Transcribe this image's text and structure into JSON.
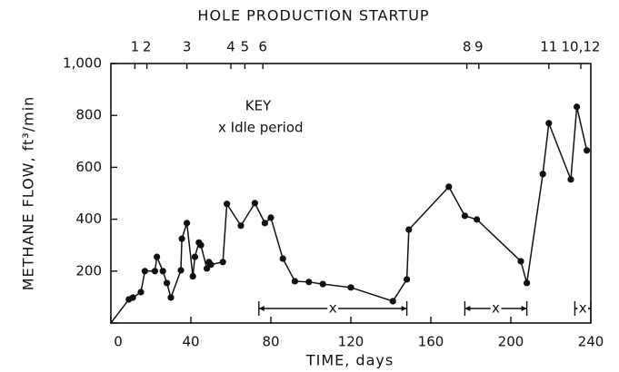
{
  "chart_data": {
    "type": "line",
    "title": "HOLE PRODUCTION STARTUP",
    "x_label": "TIME, days",
    "y_label": "METHANE FLOW, ft³/min",
    "key_title": "KEY",
    "key_text": "x Idle period",
    "xlim": [
      0,
      240
    ],
    "xticks": [
      0,
      40,
      80,
      120,
      160,
      200,
      240
    ],
    "ylim": [
      0,
      1000
    ],
    "yticks": [
      {
        "value": 0,
        "label": ""
      },
      200,
      400,
      600,
      800,
      {
        "value": 1000,
        "label": "1,000"
      }
    ],
    "color": "#111111",
    "series": [
      {
        "name": "Methane flow",
        "x": [
          0,
          9,
          11,
          15,
          17,
          22,
          23,
          26,
          28,
          30,
          35,
          35.5,
          38,
          41,
          42,
          44,
          45,
          48,
          49,
          50,
          56,
          58,
          65,
          72,
          77,
          80,
          86,
          92,
          99,
          106,
          120,
          141,
          148,
          149,
          169,
          177,
          183,
          205,
          208,
          216,
          219,
          230,
          233,
          238
        ],
        "values": [
          0,
          91,
          98,
          119,
          200,
          200,
          255,
          200,
          154,
          98,
          203,
          325,
          385,
          180,
          255,
          310,
          300,
          210,
          235,
          225,
          235,
          459,
          375,
          462,
          385,
          406,
          248,
          161,
          158,
          150,
          137,
          84,
          168,
          360,
          525,
          413,
          399,
          238,
          154,
          574,
          770,
          553,
          833,
          665
        ]
      }
    ],
    "top_annotations": [
      {
        "label": "1",
        "x": 12
      },
      {
        "label": "2",
        "x": 18
      },
      {
        "label": "3",
        "x": 38
      },
      {
        "label": "4",
        "x": 60
      },
      {
        "label": "5",
        "x": 67
      },
      {
        "label": "6",
        "x": 76
      },
      {
        "label": "8",
        "x": 178
      },
      {
        "label": "9",
        "x": 184
      },
      {
        "label": "11",
        "x": 219
      },
      {
        "label": "10,12",
        "x": 235
      }
    ],
    "idle_periods": [
      {
        "start": 74,
        "end": 148,
        "label": "x"
      },
      {
        "start": 177,
        "end": 208,
        "label": "x"
      },
      {
        "start": 232,
        "end": 240,
        "label": "x"
      }
    ]
  }
}
